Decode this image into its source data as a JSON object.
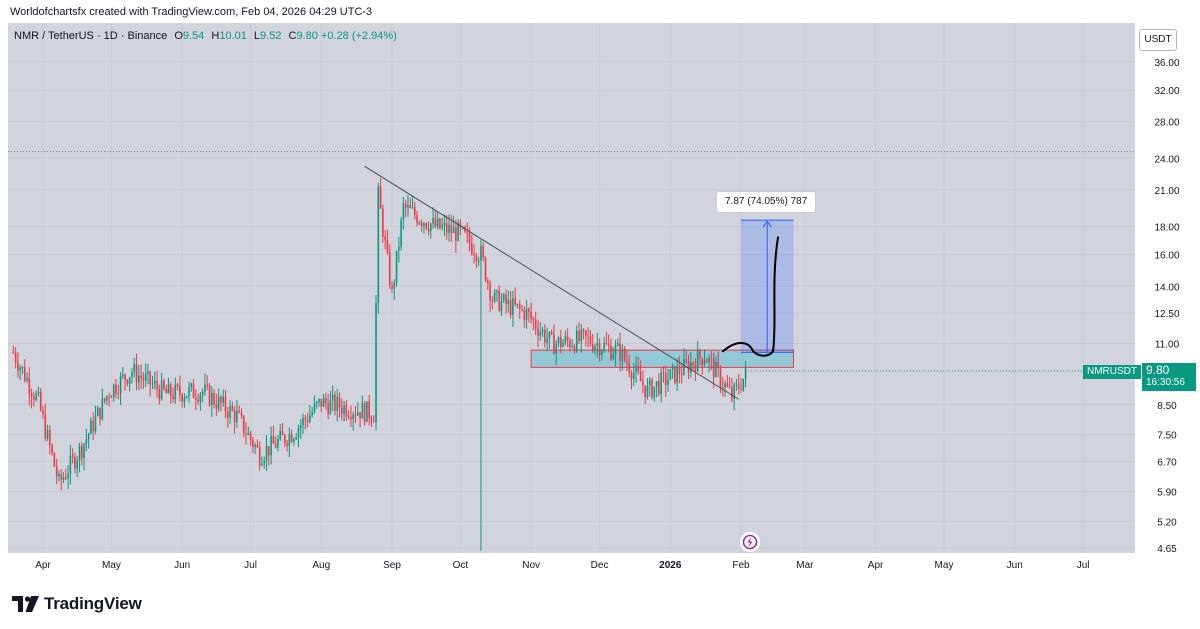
{
  "header": {
    "text": "Worldofchartsfx created with TradingView.com, Feb 04, 2026 04:29 UTC-3"
  },
  "symbol": {
    "name": "NMR / TetherUS · 1D · Binance",
    "open_k": "O",
    "open": "9.54",
    "high_k": "H",
    "high": "10.01",
    "low_k": "L",
    "low": "9.52",
    "close_k": "C",
    "close": "9.80",
    "change": "+0.28 (+2.94%)"
  },
  "currency": "USDT",
  "last_price": {
    "symbol": "NMRUSDT",
    "price": "9.80",
    "countdown": "16:30:56"
  },
  "measure": {
    "label": "7.87 (74.05%) 787"
  },
  "brand": {
    "name": "TradingView"
  },
  "colors": {
    "up": "#089981",
    "down": "#f23645",
    "bg": "#d1d4dc",
    "measure": "#2962ff",
    "zone": "#7ec6d6"
  },
  "chart_data": {
    "type": "candlestick",
    "log_scale": true,
    "timeframe": "1D",
    "y_ticks": [
      "36.00",
      "32.00",
      "28.00",
      "24.00",
      "21.00",
      "18.00",
      "16.00",
      "14.00",
      "12.50",
      "11.00",
      "9.80",
      "8.50",
      "7.50",
      "6.70",
      "5.90",
      "5.20",
      "4.65"
    ],
    "ylim": [
      4.4,
      40
    ],
    "x_ticks": [
      "Apr",
      "May",
      "Jun",
      "Jul",
      "Aug",
      "Sep",
      "Oct",
      "Nov",
      "Dec",
      "2026",
      "Feb",
      "Mar",
      "Apr",
      "May",
      "Jun",
      "Jul"
    ],
    "price_path": [
      [
        "2025-03-19",
        10.6
      ],
      [
        "2025-03-30",
        8.6
      ],
      [
        "2025-04-08",
        6.1
      ],
      [
        "2025-04-18",
        7.1
      ],
      [
        "2025-04-30",
        9.0
      ],
      [
        "2025-05-10",
        9.8
      ],
      [
        "2025-05-25",
        8.9
      ],
      [
        "2025-06-10",
        9.0
      ],
      [
        "2025-06-25",
        8.1
      ],
      [
        "2025-07-05",
        6.9
      ],
      [
        "2025-07-20",
        7.6
      ],
      [
        "2025-08-01",
        8.6
      ],
      [
        "2025-08-12",
        8.4
      ],
      [
        "2025-08-24",
        8.2
      ],
      [
        "2025-08-26",
        20.5
      ],
      [
        "2025-09-01",
        13.5
      ],
      [
        "2025-09-06",
        19.5
      ],
      [
        "2025-09-20",
        18.0
      ],
      [
        "2025-10-01",
        17.5
      ],
      [
        "2025-10-10",
        16.0
      ],
      [
        "2025-10-15",
        13.3
      ],
      [
        "2025-10-30",
        12.5
      ],
      [
        "2025-11-10",
        11.0
      ],
      [
        "2025-11-25",
        11.2
      ],
      [
        "2025-12-10",
        10.6
      ],
      [
        "2025-12-22",
        9.0
      ],
      [
        "2026-01-05",
        9.8
      ],
      [
        "2026-01-16",
        10.5
      ],
      [
        "2026-01-28",
        8.8
      ],
      [
        "2026-02-04",
        9.8
      ]
    ],
    "last_price": 9.8,
    "prior_high": 24.7,
    "annotations": {
      "trendline": {
        "from": [
          "2025-08-20",
          23.2
        ],
        "to": [
          "2026-01-31",
          8.7
        ]
      },
      "zone": {
        "from": "2025-11-01",
        "to": "2026-02-24",
        "bottom": 9.95,
        "top": 10.7
      },
      "measure": {
        "from": "2026-02-01",
        "to": "2026-02-24",
        "bottom": 10.6,
        "top": 18.5,
        "change": 7.87,
        "percent": 74.05,
        "ticks": 787
      },
      "wick_low": {
        "date": "2025-10-10",
        "value": 4.6
      }
    }
  }
}
